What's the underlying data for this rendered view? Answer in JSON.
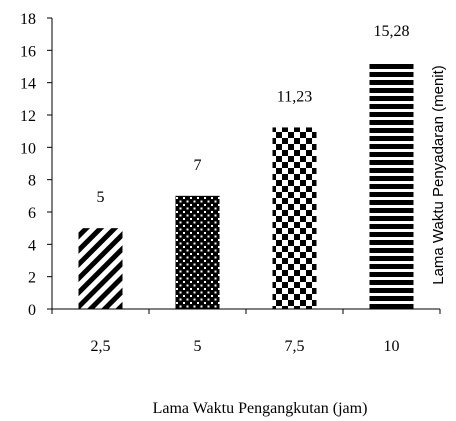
{
  "chart_data": {
    "type": "bar",
    "categories": [
      "2,5",
      "5",
      "7,5",
      "10"
    ],
    "values": [
      5,
      7,
      11.23,
      15.28
    ],
    "data_labels": [
      "5",
      "7",
      "11,23",
      "15,28"
    ],
    "xlabel": "Lama Waktu Pengangkutan  (jam)",
    "ylabel": "Lama Waktu Penyadaran (menit)",
    "ylim": [
      0,
      18
    ],
    "yticks": [
      "0",
      "2",
      "4",
      "6",
      "8",
      "10",
      "12",
      "14",
      "16",
      "18"
    ],
    "bar_patterns": [
      "diagonal-stripes",
      "dots",
      "checkerboard",
      "horizontal-stripes"
    ],
    "bar_color": "#000000",
    "grid": false,
    "legend": "none"
  }
}
